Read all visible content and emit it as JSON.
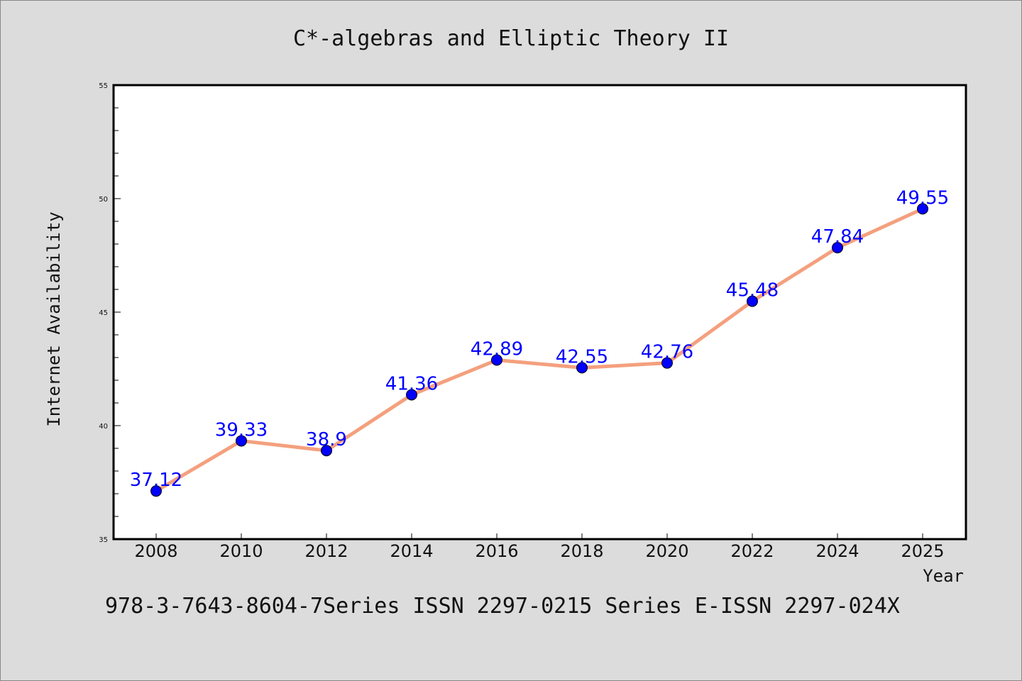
{
  "chart_data": {
    "type": "line",
    "title": "C*-algebras and Elliptic Theory II",
    "xlabel": "Year",
    "ylabel": "Internet Availability",
    "x": [
      "2008",
      "2010",
      "2012",
      "2014",
      "2016",
      "2018",
      "2020",
      "2022",
      "2024",
      "2025"
    ],
    "series": [
      {
        "values": [
          37.12,
          39.33,
          38.9,
          41.36,
          42.89,
          42.55,
          42.76,
          45.48,
          47.84,
          49.55
        ],
        "labels": [
          "37.12",
          "39.33",
          "38.9",
          "41.36",
          "42.89",
          "42.55",
          "42.76",
          "45.48",
          "47.84",
          "49.55"
        ],
        "line_color": "#f4a07e",
        "marker_color": "#0000ff"
      }
    ],
    "ylim": [
      35,
      55
    ],
    "yticks": [
      "35",
      "40",
      "45",
      "50",
      "55"
    ],
    "grid": false,
    "footer": "978-3-7643-8604-7Series ISSN 2297-0215 Series E-ISSN 2297-024X"
  }
}
